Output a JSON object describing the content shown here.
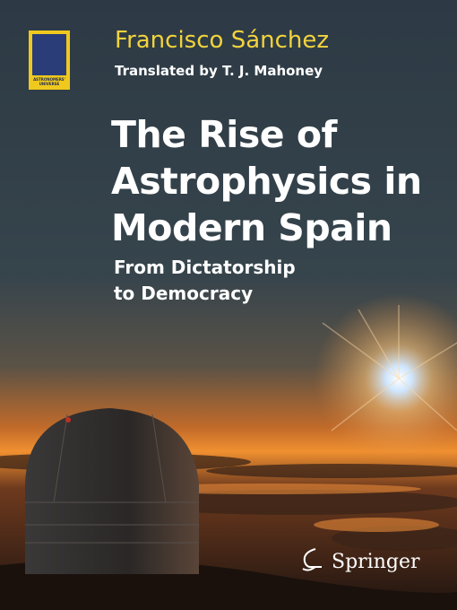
{
  "series_logo": "Astronomers' Universe",
  "author": "Francisco Sánchez",
  "translator": "Translated by T. J. Mahoney",
  "title_lines": [
    "The Rise of",
    "Astrophysics in",
    "Modern Spain"
  ],
  "subtitle_lines": [
    "From Dictatorship",
    "to Democracy"
  ],
  "publisher": "Springer"
}
